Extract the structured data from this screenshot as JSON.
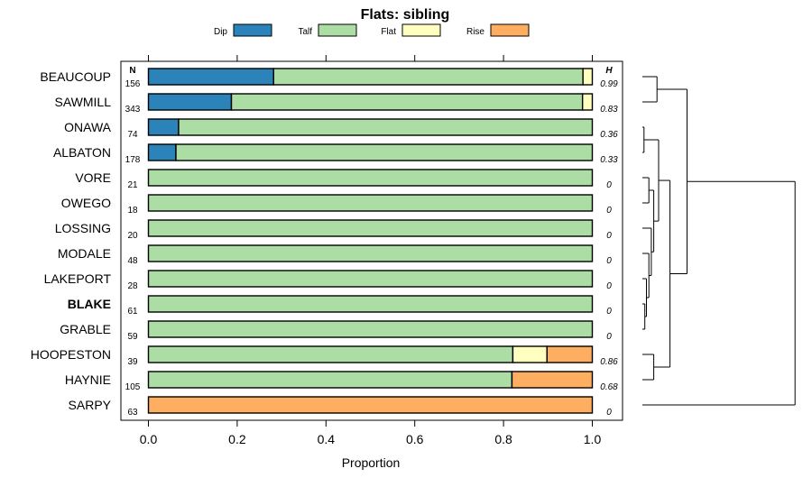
{
  "chart_data": {
    "type": "bar",
    "stacked": true,
    "orientation": "horizontal",
    "title": "Flats: sibling",
    "xlabel": "Proportion",
    "xlim": [
      0,
      1
    ],
    "x_ticks": [
      0,
      0.2,
      0.4,
      0.6,
      0.8,
      1
    ],
    "x_tick_labels": [
      "0.0",
      "0.2",
      "0.4",
      "0.6",
      "0.8",
      "1.0"
    ],
    "n_header": "N",
    "h_header": "H",
    "bold_category": "BLAKE",
    "categories": [
      "BEAUCOUP",
      "SAWMILL",
      "ONAWA",
      "ALBATON",
      "VORE",
      "OWEGO",
      "LOSSING",
      "MODALE",
      "LAKEPORT",
      "BLAKE",
      "GRABLE",
      "HOOPESTON",
      "HAYNIE",
      "SARPY"
    ],
    "n_values": [
      "156",
      "343",
      "74",
      "178",
      "21",
      "18",
      "20",
      "48",
      "28",
      "61",
      "59",
      "39",
      "105",
      "63"
    ],
    "h_values": [
      "0.99",
      "0.83",
      "0.36",
      "0.33",
      "0",
      "0",
      "0",
      "0",
      "0",
      "0",
      "0",
      "0.86",
      "0.68",
      "0"
    ],
    "series": [
      {
        "name": "Dip",
        "color": "#2b83ba",
        "values": [
          0.282,
          0.187,
          0.068,
          0.062,
          0,
          0,
          0,
          0,
          0,
          0,
          0,
          0,
          0,
          0
        ]
      },
      {
        "name": "Talf",
        "color": "#abdda4",
        "values": [
          0.697,
          0.791,
          0.932,
          0.938,
          1,
          1,
          1,
          1,
          1,
          1,
          1,
          0.821,
          0.819,
          0
        ]
      },
      {
        "name": "Flat",
        "color": "#ffffbf",
        "values": [
          0.021,
          0.022,
          0,
          0,
          0,
          0,
          0,
          0,
          0,
          0,
          0,
          0.077,
          0,
          0
        ]
      },
      {
        "name": "Rise",
        "color": "#fdae61",
        "values": [
          0,
          0,
          0,
          0,
          0,
          0,
          0,
          0,
          0,
          0,
          0,
          0.102,
          0.181,
          1
        ]
      }
    ],
    "dendrogram": {
      "leaves": [
        "BEAUCOUP",
        "SAWMILL",
        "ONAWA",
        "ALBATON",
        "VORE",
        "OWEGO",
        "LOSSING",
        "MODALE",
        "LAKEPORT",
        "BLAKE",
        "GRABLE",
        "HOOPESTON",
        "HAYNIE",
        "SARPY"
      ],
      "merges": [
        [
          -1,
          -2,
          0.09
        ],
        [
          -3,
          -4,
          0.01
        ],
        [
          -5,
          -6,
          0.04
        ],
        [
          -10,
          -11,
          0.015
        ],
        [
          -9,
          4,
          0.025
        ],
        [
          -8,
          5,
          0.04
        ],
        [
          -7,
          6,
          0.055
        ],
        [
          3,
          7,
          0.07
        ],
        [
          2,
          8,
          0.1
        ],
        [
          -12,
          -13,
          0.07
        ],
        [
          9,
          10,
          0.17
        ],
        [
          1,
          11,
          0.275
        ],
        [
          12,
          -14,
          0.94
        ]
      ],
      "height_max": 1.0
    }
  }
}
